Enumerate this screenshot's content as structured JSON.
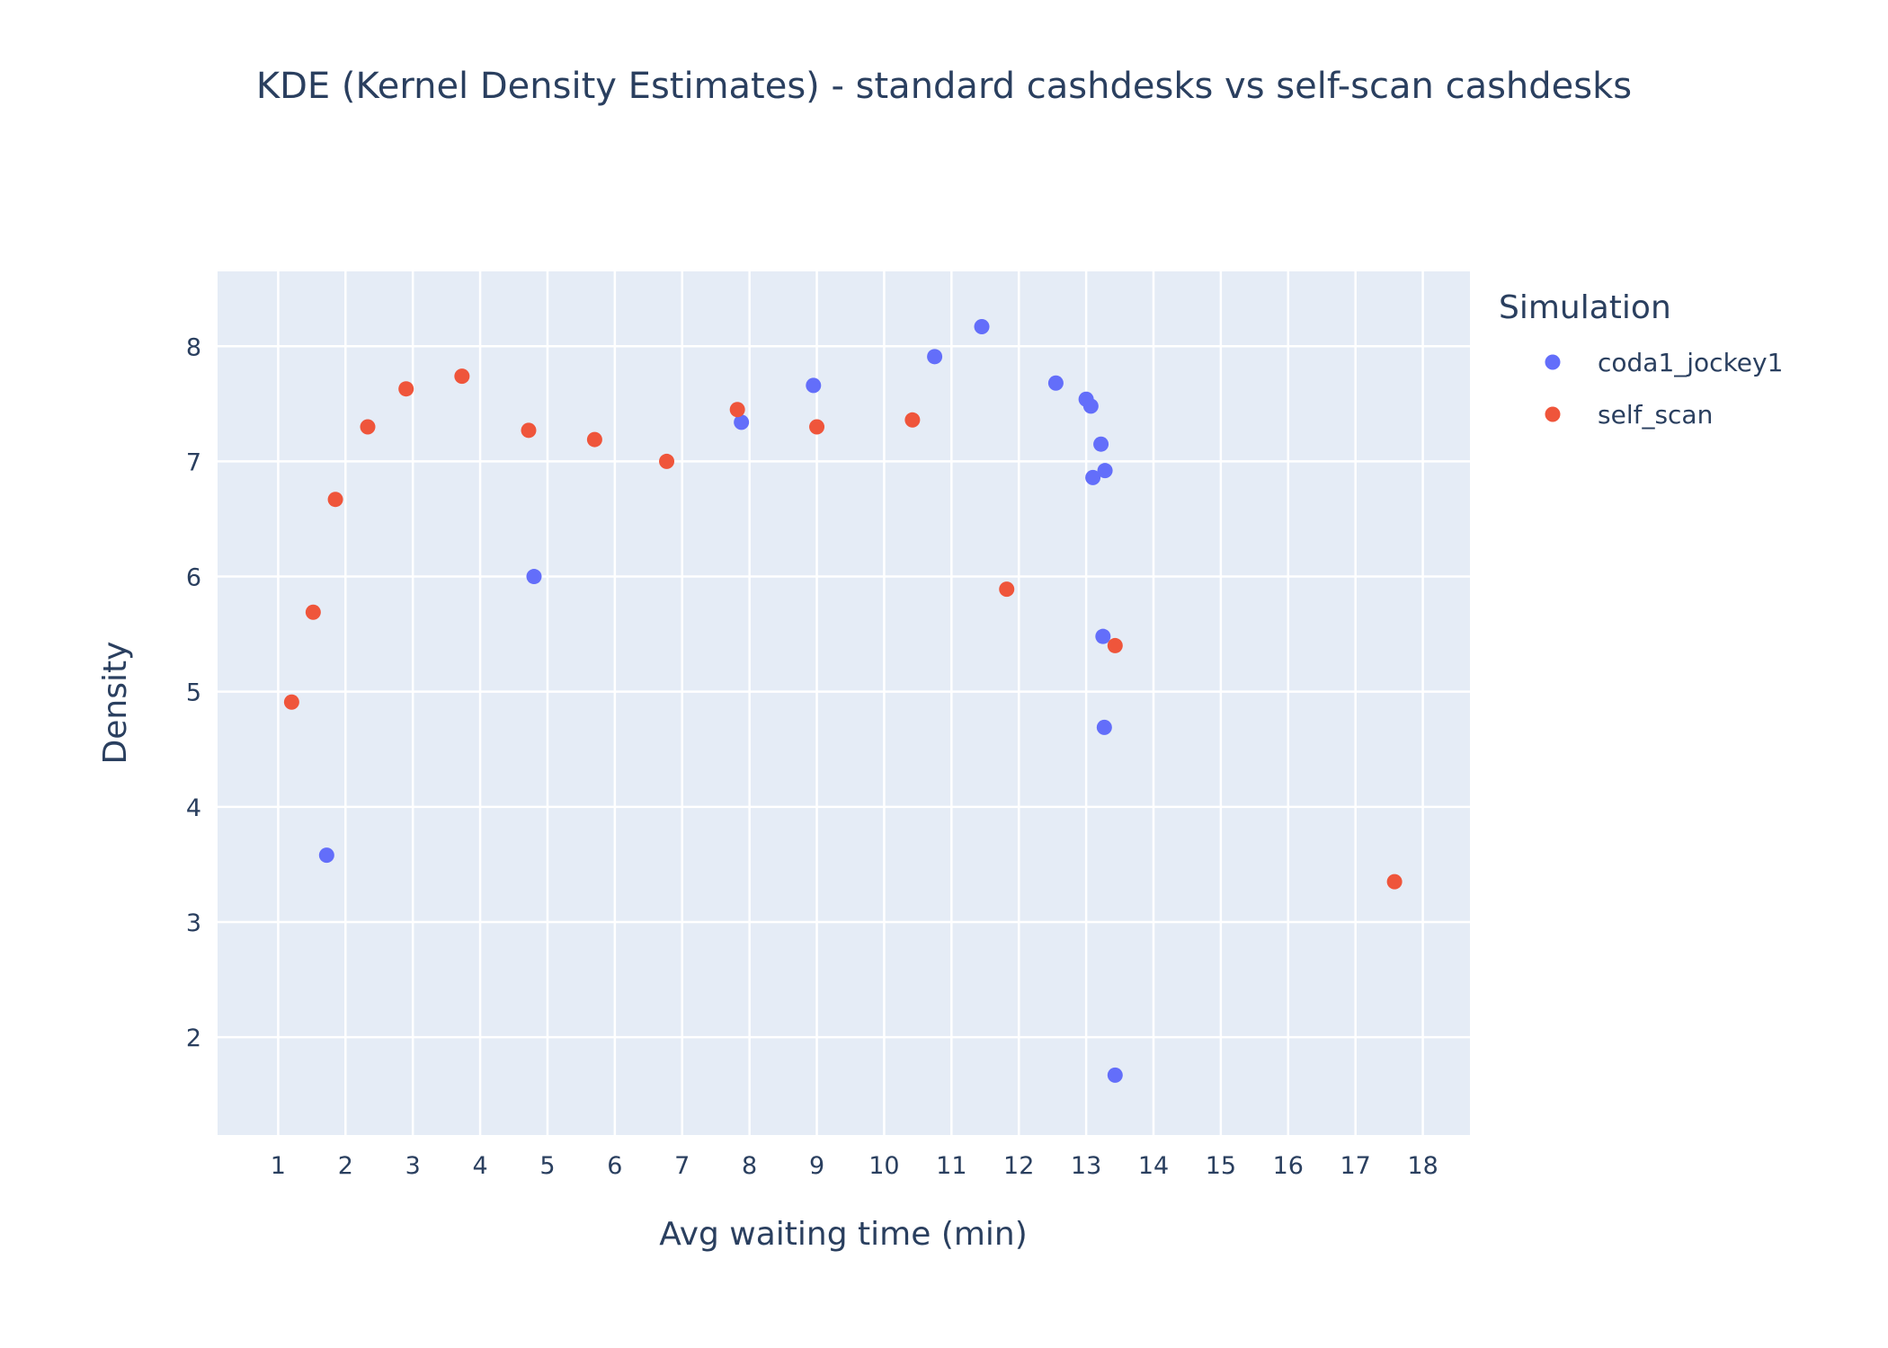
{
  "chart_data": {
    "type": "scatter",
    "title": "KDE (Kernel Density Estimates) - standard cashdesks vs self-scan cashdesks",
    "xlabel": "Avg waiting time (min)",
    "ylabel": "Density",
    "xlim": [
      0.1,
      18.7
    ],
    "ylim": [
      1.15,
      8.65
    ],
    "x_ticks": [
      1,
      2,
      3,
      4,
      5,
      6,
      7,
      8,
      9,
      10,
      11,
      12,
      13,
      14,
      15,
      16,
      17,
      18
    ],
    "y_ticks": [
      2,
      3,
      4,
      5,
      6,
      7,
      8
    ],
    "grid": true,
    "legend": {
      "title": "Simulation",
      "position": "top-right, outside plot"
    },
    "background_color": "#e5ecf6",
    "series": [
      {
        "name": "coda1_jockey1",
        "color": "#636efa",
        "points": [
          {
            "x": 1.72,
            "y": 3.58
          },
          {
            "x": 4.8,
            "y": 6.0
          },
          {
            "x": 7.88,
            "y": 7.34
          },
          {
            "x": 8.95,
            "y": 7.66
          },
          {
            "x": 10.75,
            "y": 7.91
          },
          {
            "x": 11.45,
            "y": 8.17
          },
          {
            "x": 12.55,
            "y": 7.68
          },
          {
            "x": 13.0,
            "y": 7.54
          },
          {
            "x": 13.07,
            "y": 7.48
          },
          {
            "x": 13.22,
            "y": 7.15
          },
          {
            "x": 13.28,
            "y": 6.92
          },
          {
            "x": 13.1,
            "y": 6.86
          },
          {
            "x": 13.25,
            "y": 5.48
          },
          {
            "x": 13.27,
            "y": 4.69
          },
          {
            "x": 13.43,
            "y": 1.67
          }
        ]
      },
      {
        "name": "self_scan",
        "color": "#ef553b",
        "points": [
          {
            "x": 1.2,
            "y": 4.91
          },
          {
            "x": 1.52,
            "y": 5.69
          },
          {
            "x": 1.85,
            "y": 6.67
          },
          {
            "x": 2.33,
            "y": 7.3
          },
          {
            "x": 2.9,
            "y": 7.63
          },
          {
            "x": 3.73,
            "y": 7.74
          },
          {
            "x": 4.72,
            "y": 7.27
          },
          {
            "x": 5.7,
            "y": 7.19
          },
          {
            "x": 6.77,
            "y": 7.0
          },
          {
            "x": 7.82,
            "y": 7.45
          },
          {
            "x": 9.0,
            "y": 7.3
          },
          {
            "x": 10.42,
            "y": 7.36
          },
          {
            "x": 11.82,
            "y": 5.89
          },
          {
            "x": 13.43,
            "y": 5.4
          },
          {
            "x": 17.58,
            "y": 3.35
          }
        ]
      }
    ]
  }
}
